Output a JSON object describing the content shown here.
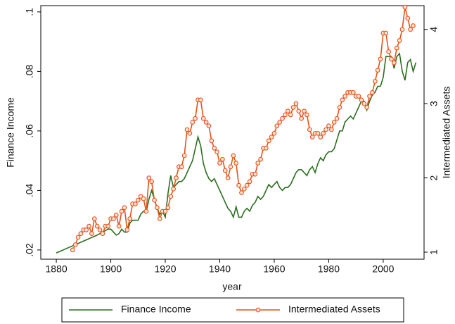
{
  "chart_data": {
    "type": "line",
    "x_label": "year",
    "y_label": "Finance Income",
    "y2_label": "Intermediated Assets",
    "xlim": [
      1874.3,
      2015
    ],
    "xticks": [
      1880,
      1900,
      1920,
      1940,
      1960,
      1980,
      2000
    ],
    "ylim": [
      0.0169,
      0.1021
    ],
    "yticks": [
      {
        "value": 0.02,
        "label": ".02"
      },
      {
        "value": 0.04,
        "label": ".04"
      },
      {
        "value": 0.06,
        "label": ".06"
      },
      {
        "value": 0.08,
        "label": ".08"
      },
      {
        "value": 0.1,
        "label": ".1"
      }
    ],
    "y2lim": [
      0.905,
      4.32
    ],
    "y2ticks": [
      1,
      2,
      3,
      4
    ],
    "series": [
      {
        "name": "Finance Income",
        "color": "#2a6e1e",
        "x": [
          1880,
          1885,
          1890,
          1895,
          1899,
          1900,
          1901,
          1902,
          1903,
          1904,
          1905,
          1906,
          1907,
          1908,
          1909,
          1910,
          1911,
          1912,
          1913,
          1914,
          1915,
          1916,
          1917,
          1918,
          1919,
          1920,
          1921,
          1922,
          1923,
          1924,
          1925,
          1926,
          1927,
          1928,
          1929,
          1930,
          1931,
          1932,
          1933,
          1934,
          1935,
          1936,
          1937,
          1938,
          1939,
          1940,
          1941,
          1942,
          1943,
          1944,
          1945,
          1946,
          1947,
          1948,
          1949,
          1950,
          1951,
          1952,
          1953,
          1954,
          1955,
          1956,
          1957,
          1958,
          1959,
          1960,
          1961,
          1962,
          1963,
          1964,
          1965,
          1966,
          1967,
          1968,
          1969,
          1970,
          1971,
          1972,
          1973,
          1974,
          1975,
          1976,
          1977,
          1978,
          1979,
          1980,
          1981,
          1982,
          1983,
          1984,
          1985,
          1986,
          1987,
          1988,
          1989,
          1990,
          1991,
          1992,
          1993,
          1994,
          1995,
          1996,
          1997,
          1998,
          1999,
          2000,
          2001,
          2002,
          2003,
          2004,
          2005,
          2006,
          2007,
          2008,
          2009,
          2010,
          2011,
          2012
        ],
        "values": [
          0.019,
          0.021,
          0.023,
          0.025,
          0.027,
          0.027,
          0.026,
          0.025,
          0.0255,
          0.027,
          0.026,
          0.026,
          0.029,
          0.03,
          0.03,
          0.03,
          0.032,
          0.033,
          0.033,
          0.037,
          0.04,
          0.037,
          0.034,
          0.032,
          0.033,
          0.031,
          0.039,
          0.045,
          0.041,
          0.042,
          0.043,
          0.043,
          0.044,
          0.046,
          0.048,
          0.05,
          0.054,
          0.058,
          0.055,
          0.049,
          0.046,
          0.044,
          0.043,
          0.044,
          0.042,
          0.04,
          0.038,
          0.036,
          0.034,
          0.033,
          0.031,
          0.0345,
          0.031,
          0.031,
          0.033,
          0.034,
          0.033,
          0.035,
          0.036,
          0.038,
          0.037,
          0.038,
          0.04,
          0.042,
          0.041,
          0.042,
          0.043,
          0.041,
          0.04,
          0.041,
          0.041,
          0.042,
          0.044,
          0.046,
          0.047,
          0.047,
          0.046,
          0.045,
          0.047,
          0.048,
          0.046,
          0.049,
          0.051,
          0.05,
          0.052,
          0.053,
          0.053,
          0.054,
          0.057,
          0.06,
          0.06,
          0.063,
          0.064,
          0.065,
          0.064,
          0.066,
          0.068,
          0.07,
          0.07,
          0.067,
          0.07,
          0.072,
          0.073,
          0.075,
          0.075,
          0.078,
          0.085,
          0.085,
          0.085,
          0.081,
          0.085,
          0.086,
          0.08,
          0.077,
          0.083,
          0.084,
          0.08,
          0.083
        ]
      },
      {
        "name": "Intermediated Assets",
        "color": "#e5521c",
        "axis": "y2",
        "marker": "circle",
        "x": [
          1886,
          1887,
          1888,
          1889,
          1890,
          1891,
          1892,
          1893,
          1894,
          1895,
          1896,
          1897,
          1898,
          1899,
          1900,
          1901,
          1902,
          1903,
          1904,
          1905,
          1906,
          1907,
          1908,
          1909,
          1910,
          1911,
          1912,
          1913,
          1914,
          1915,
          1916,
          1917,
          1918,
          1919,
          1920,
          1921,
          1922,
          1923,
          1924,
          1925,
          1926,
          1927,
          1928,
          1929,
          1930,
          1931,
          1932,
          1933,
          1934,
          1935,
          1936,
          1937,
          1938,
          1939,
          1940,
          1941,
          1942,
          1943,
          1944,
          1945,
          1946,
          1947,
          1948,
          1949,
          1950,
          1951,
          1952,
          1953,
          1954,
          1955,
          1956,
          1957,
          1958,
          1959,
          1960,
          1961,
          1962,
          1963,
          1964,
          1965,
          1966,
          1967,
          1968,
          1969,
          1970,
          1971,
          1972,
          1973,
          1974,
          1975,
          1976,
          1977,
          1978,
          1979,
          1980,
          1981,
          1982,
          1983,
          1984,
          1985,
          1986,
          1987,
          1988,
          1989,
          1990,
          1991,
          1992,
          1993,
          1994,
          1995,
          1996,
          1997,
          1998,
          1999,
          2000,
          2001,
          2002,
          2003,
          2004,
          2005,
          2006,
          2007,
          2008,
          2009,
          2010,
          2011
        ],
        "values": [
          1.03,
          1.1,
          1.2,
          1.25,
          1.3,
          1.3,
          1.35,
          1.25,
          1.45,
          1.35,
          1.3,
          1.25,
          1.35,
          1.35,
          1.45,
          1.45,
          1.5,
          1.35,
          1.55,
          1.6,
          1.3,
          1.45,
          1.65,
          1.65,
          1.7,
          1.75,
          1.72,
          1.55,
          2.0,
          1.95,
          1.7,
          1.6,
          1.45,
          1.55,
          1.55,
          1.6,
          1.75,
          1.85,
          2.0,
          2.15,
          2.15,
          2.3,
          2.65,
          2.6,
          2.75,
          2.8,
          3.05,
          3.05,
          2.8,
          2.75,
          2.7,
          2.5,
          2.4,
          2.35,
          2.2,
          2.25,
          2.1,
          2.0,
          2.15,
          2.3,
          2.2,
          1.9,
          1.8,
          1.85,
          1.9,
          1.95,
          2.05,
          2.05,
          2.2,
          2.25,
          2.4,
          2.4,
          2.5,
          2.55,
          2.6,
          2.7,
          2.75,
          2.8,
          2.85,
          2.9,
          2.85,
          2.95,
          3.0,
          2.9,
          2.8,
          2.9,
          2.85,
          2.65,
          2.55,
          2.6,
          2.6,
          2.55,
          2.6,
          2.65,
          2.7,
          2.65,
          2.75,
          2.8,
          2.95,
          3.05,
          3.1,
          3.15,
          3.15,
          3.15,
          3.1,
          3.1,
          3.05,
          3.0,
          2.95,
          3.1,
          3.15,
          3.3,
          3.45,
          3.6,
          3.95,
          3.95,
          3.7,
          3.6,
          3.55,
          3.75,
          3.85,
          4.0,
          4.3,
          4.15,
          4.0,
          4.05
        ]
      }
    ]
  }
}
